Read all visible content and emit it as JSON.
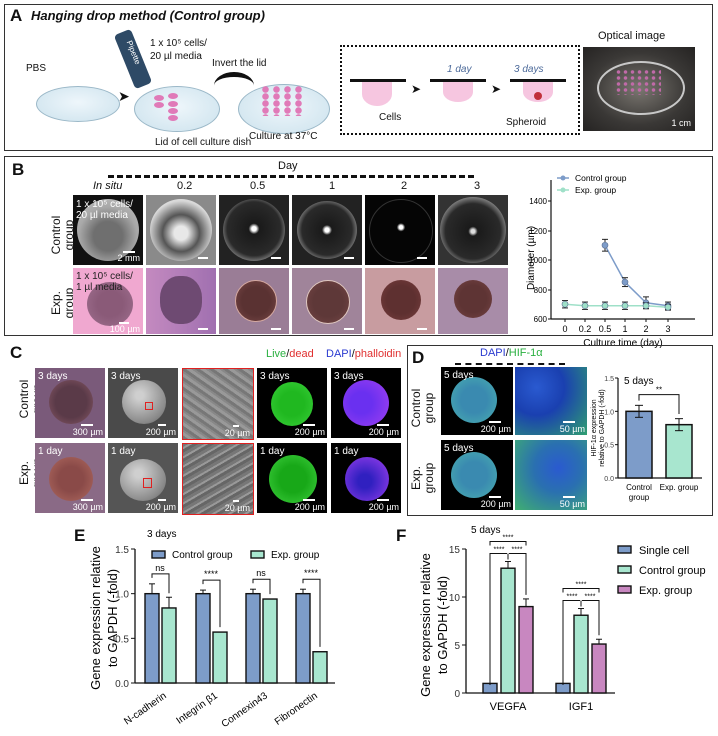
{
  "panelA": {
    "label": "A",
    "title": "Hanging drop method (Control group)",
    "pbs": "PBS",
    "pipette": "Pipette",
    "cells_line1": "1 x 10⁵ cells/",
    "cells_line2": "20 µl media",
    "invert": "Invert the lid",
    "lid": "Lid of cell culture dish",
    "culture": "Culture at 37°C",
    "stage_day1": "1 day",
    "stage_day3": "3 days",
    "cells": "Cells",
    "spheroid": "Spheroid",
    "optical_title": "Optical image",
    "optical_scale": "1 cm"
  },
  "panelB": {
    "label": "B",
    "day_header": "Day",
    "columns": [
      "In situ",
      "0.2",
      "0.5",
      "1",
      "2",
      "3"
    ],
    "row_control": [
      "Control",
      "group"
    ],
    "row_exp": [
      "Exp.",
      "group"
    ],
    "ctrl_note1": "1 x 10⁵ cells/",
    "ctrl_note2": "20 µl media",
    "ctrl_scale": "2 mm",
    "exp_note1": "1 x 10⁵ cells/",
    "exp_note2": "1 µl media",
    "exp_scale": "100 µm"
  },
  "panelC": {
    "label": "C",
    "stain_live": "Live",
    "stain_dead": "dead",
    "stain_dapi": "DAPI",
    "stain_phalloidin": "phalloidin",
    "row_control": [
      "Control",
      "group"
    ],
    "row_exp": [
      "Exp.",
      "group"
    ],
    "ctrl_labels": [
      "3 days",
      "3 days",
      "",
      "3 days",
      "3 days"
    ],
    "exp_labels": [
      "1 day",
      "1 day",
      "",
      "1 day",
      "1 day"
    ],
    "scales": [
      "300 µm",
      "200 µm",
      "20 µm",
      "200 µm",
      "200 µm"
    ]
  },
  "panelD": {
    "label": "D",
    "stain_dapi": "DAPI",
    "stain_hif": "HIF-1α",
    "row_control": [
      "Control",
      "group"
    ],
    "row_exp": [
      "Exp.",
      "group"
    ],
    "img_label": "5 days",
    "scale_left": "200 µm",
    "scale_right": "50 µm"
  },
  "panelE": {
    "label": "E"
  },
  "panelF": {
    "label": "F"
  },
  "chart_data": [
    {
      "id": "B-diameter",
      "type": "line",
      "title": "",
      "xlabel": "Culture time (day)",
      "ylabel": "Diameter (µm)",
      "categories": [
        "0",
        "0.2",
        "0.5",
        "1",
        "2",
        "3"
      ],
      "ylim": [
        600,
        1400
      ],
      "yticks": [
        600,
        800,
        1000,
        1200,
        1400
      ],
      "legend_position": "top-left inside",
      "series": [
        {
          "name": "Control group",
          "color": "#7d9cc9",
          "values": [
            null,
            null,
            1100,
            850,
            710,
            690
          ],
          "errors": [
            null,
            null,
            40,
            30,
            40,
            25
          ]
        },
        {
          "name": "Exp. group",
          "color": "#9fe0c8",
          "values": [
            700,
            690,
            690,
            690,
            690,
            680
          ],
          "errors": [
            25,
            25,
            25,
            25,
            20,
            20
          ]
        }
      ]
    },
    {
      "id": "D-hif1a",
      "type": "bar",
      "title": "5 days",
      "xlabel": "",
      "ylabel": "HIF-1α expression relative to GAPDH (-fold)",
      "categories": [
        "Control group",
        "Exp. group"
      ],
      "values": [
        1.0,
        0.8
      ],
      "errors": [
        0.09,
        0.09
      ],
      "colors": [
        "#7d9cc9",
        "#a8e6cf"
      ],
      "ylim": [
        0,
        1.5
      ],
      "yticks": [
        "0.0",
        "0.5",
        "1.0",
        "1.5"
      ],
      "annotations": [
        {
          "between": [
            0,
            1
          ],
          "text": "**"
        }
      ]
    },
    {
      "id": "E-adhesion",
      "type": "bar",
      "title": "3 days",
      "xlabel": "",
      "ylabel": "Gene expression relative to GAPDH (-fold)",
      "categories": [
        "N-cadherin",
        "Integrin β1",
        "Connexin43",
        "Fibronectin"
      ],
      "ylim": [
        0,
        1.5
      ],
      "yticks": [
        "0.0",
        "0.5",
        "1.0",
        "1.5"
      ],
      "legend_position": "top",
      "series": [
        {
          "name": "Control group",
          "color": "#7d9cc9",
          "values": [
            1.0,
            1.0,
            1.0,
            1.0
          ],
          "errors": [
            0.11,
            0.04,
            0.05,
            0.05
          ]
        },
        {
          "name": "Exp. group",
          "color": "#a8e6cf",
          "values": [
            0.84,
            0.57,
            0.94,
            0.35
          ],
          "errors": [
            0.12,
            0.01,
            0.01,
            0.01
          ]
        }
      ],
      "annotations": [
        "ns",
        "****",
        "ns",
        "****"
      ]
    },
    {
      "id": "F-growth-factors",
      "type": "bar",
      "title": "5 days",
      "xlabel": "",
      "ylabel": "Gene expression relative to GAPDH (-fold)",
      "categories": [
        "VEGFA",
        "IGF1"
      ],
      "ylim": [
        0,
        15
      ],
      "yticks": [
        "0",
        "5",
        "10",
        "15"
      ],
      "legend_position": "right",
      "series": [
        {
          "name": "Single cell",
          "color": "#7d9cc9",
          "values": [
            1.0,
            1.0
          ],
          "errors": [
            0.05,
            0.05
          ]
        },
        {
          "name": "Control group",
          "color": "#a8e6cf",
          "values": [
            13.0,
            8.1
          ],
          "errors": [
            0.7,
            0.7
          ]
        },
        {
          "name": "Exp. group",
          "color": "#c887c0",
          "values": [
            9.0,
            5.1
          ],
          "errors": [
            0.8,
            0.5
          ]
        }
      ],
      "annotations": [
        "****",
        "****",
        "****",
        "****",
        "****",
        "****"
      ]
    }
  ]
}
